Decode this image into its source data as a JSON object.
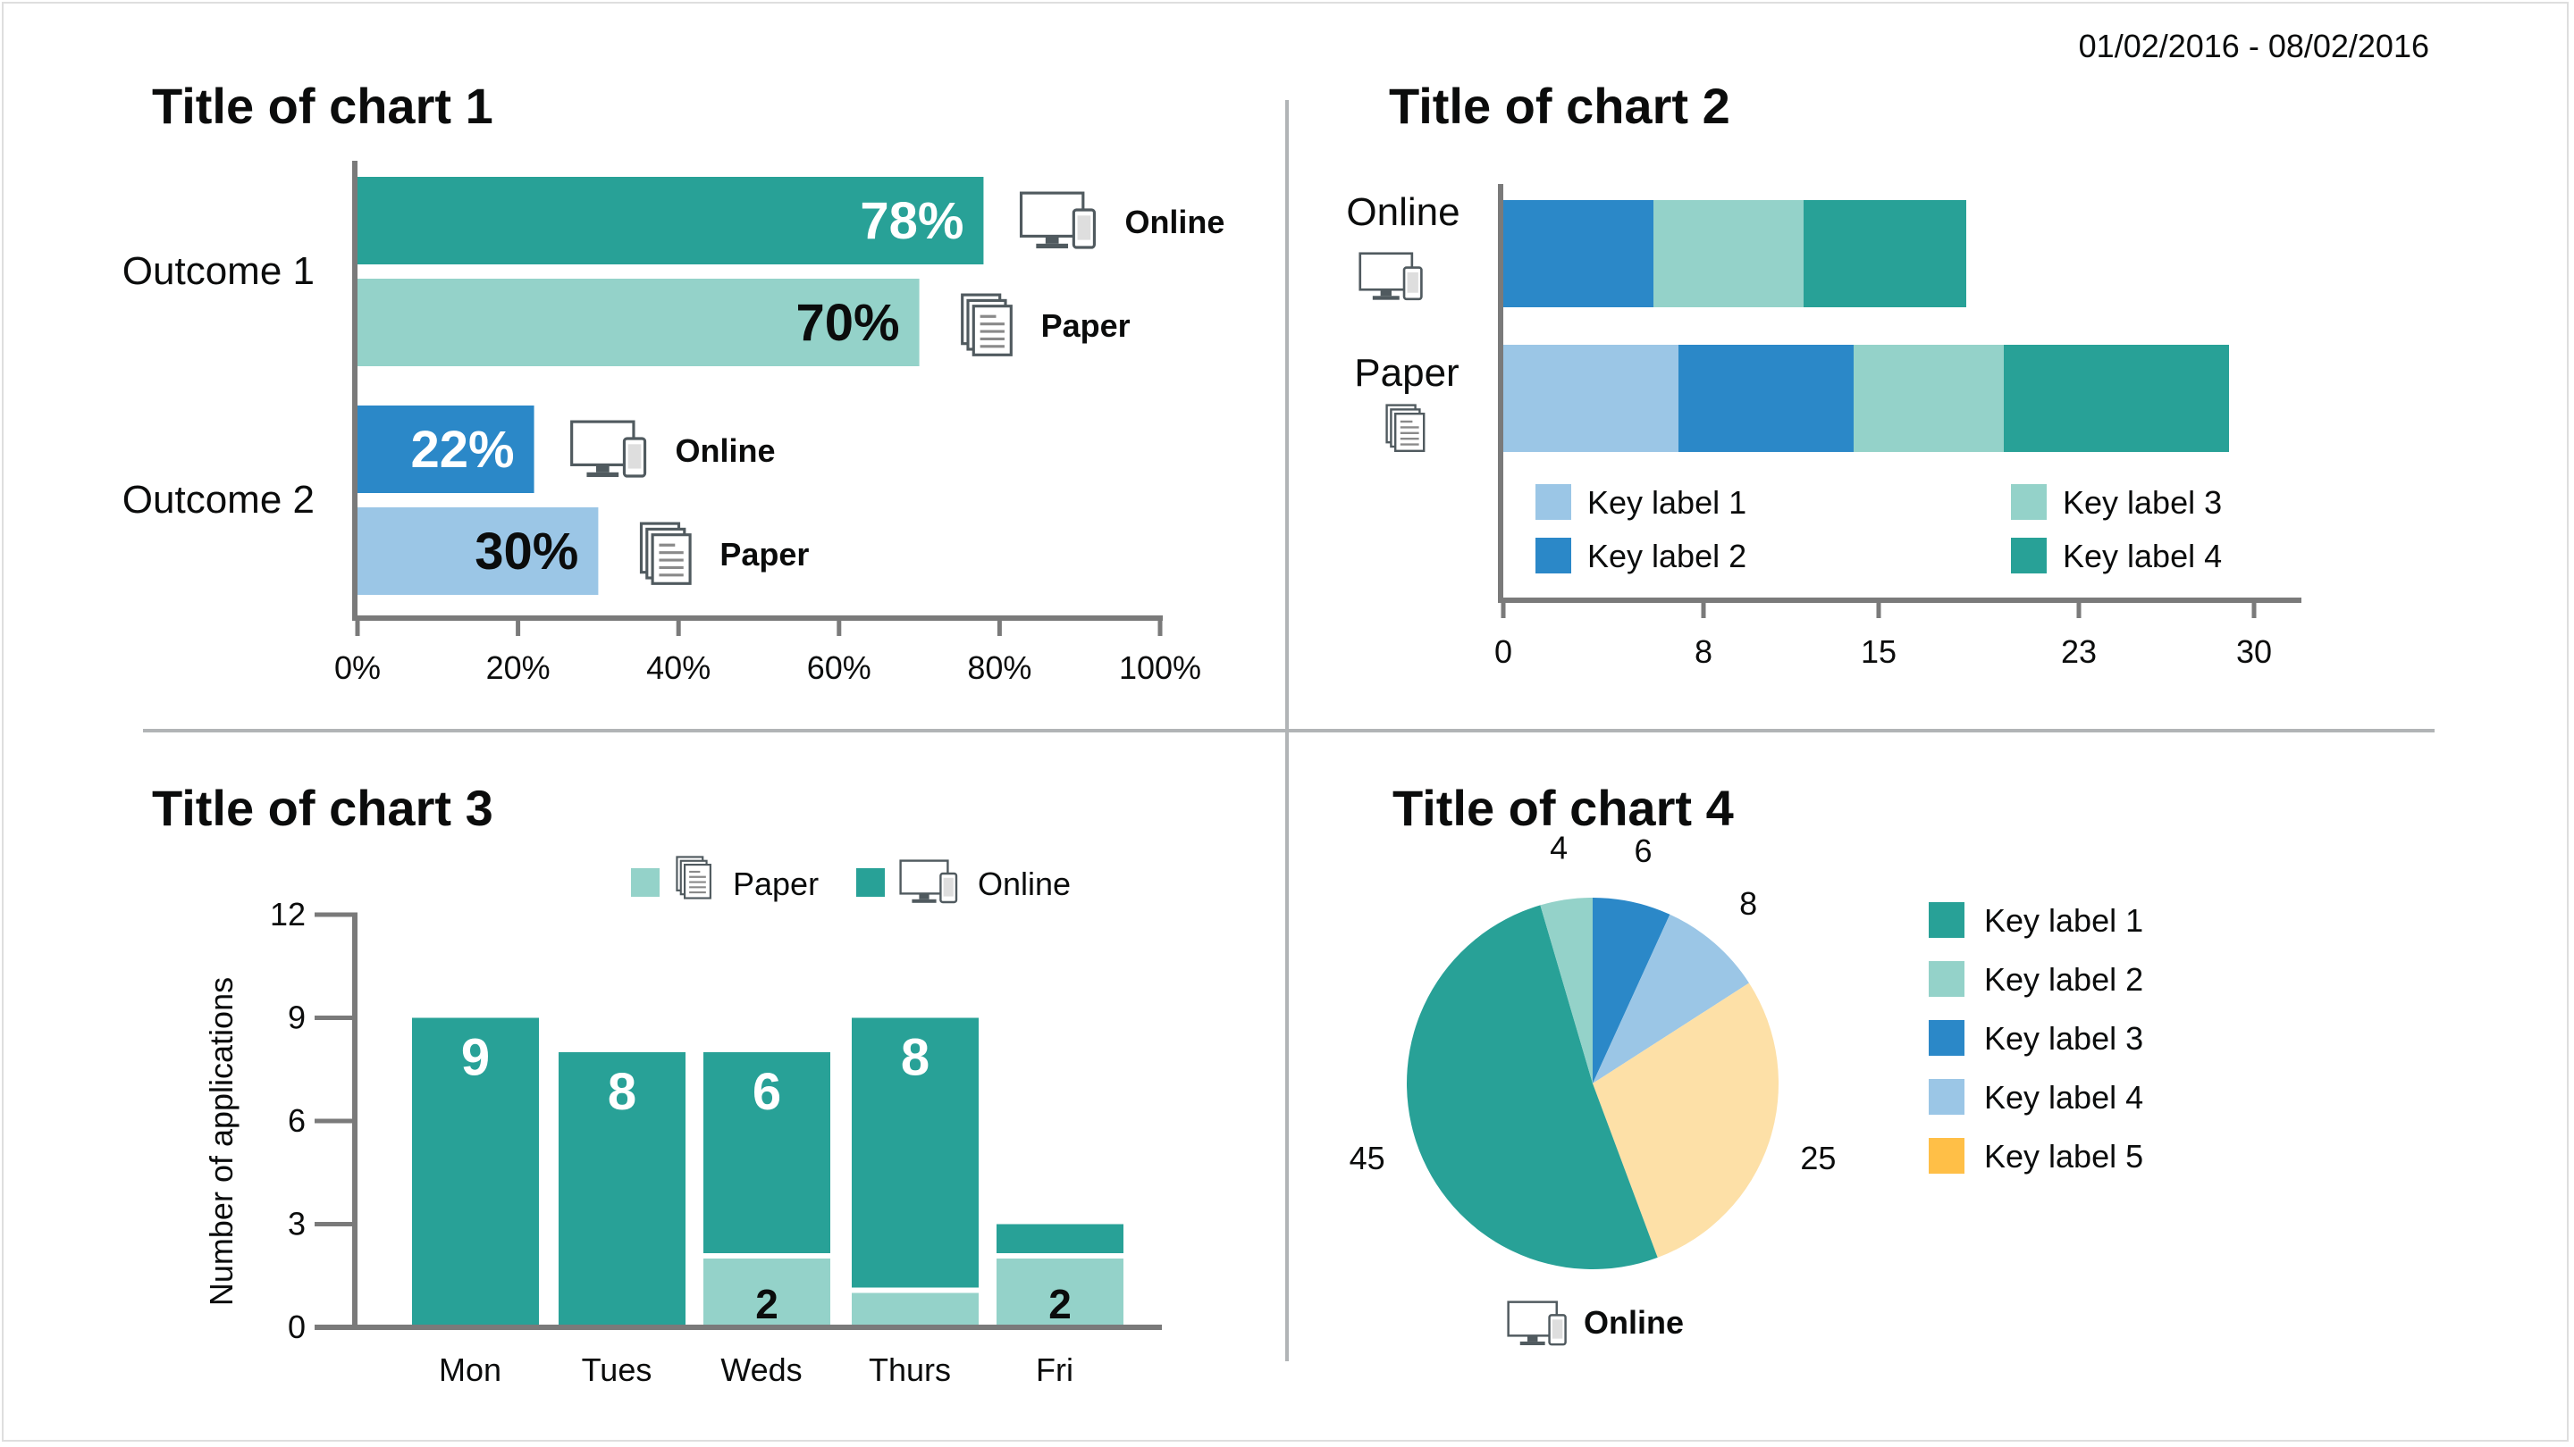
{
  "date_range": "01/02/2016 - 08/02/2016",
  "colors": {
    "teal": "#28a197",
    "light_teal": "#94d2c9",
    "blue": "#2b88c8",
    "light_blue": "#9bc6e6",
    "yellow": "#fde0a7",
    "orange": "#ffbf47",
    "axis": "#7a7a7a",
    "text": "#0b0c0c"
  },
  "icons": {
    "online": "desktop-and-phone-icon",
    "paper": "paper-documents-icon"
  },
  "chart_data": [
    {
      "type": "bar",
      "orientation": "horizontal",
      "title": "Title of chart 1",
      "categories": [
        "Outcome 1",
        "Outcome 2"
      ],
      "series": [
        {
          "name": "Online",
          "values": [
            78,
            22
          ],
          "value_labels": [
            "78%",
            "22%"
          ]
        },
        {
          "name": "Paper",
          "values": [
            70,
            30
          ],
          "value_labels": [
            "70%",
            "30%"
          ]
        }
      ],
      "xlim": [
        0,
        100
      ],
      "xticks": [
        "0%",
        "20%",
        "40%",
        "60%",
        "80%",
        "100%"
      ]
    },
    {
      "type": "bar",
      "orientation": "horizontal",
      "stacked": true,
      "title": "Title of chart 2",
      "categories": [
        "Online",
        "Paper"
      ],
      "series": [
        {
          "name": "Key label 1",
          "values": [
            0,
            7
          ]
        },
        {
          "name": "Key label 2",
          "values": [
            6,
            7
          ]
        },
        {
          "name": "Key label 3",
          "values": [
            6,
            6
          ]
        },
        {
          "name": "Key label 4",
          "values": [
            6.5,
            9
          ]
        }
      ],
      "xlim": [
        0,
        32
      ],
      "xticks": [
        0,
        8,
        15,
        23,
        30
      ],
      "legend": [
        "Key label 1",
        "Key label 2",
        "Key label 3",
        "Key label 4"
      ]
    },
    {
      "type": "bar",
      "stacked": true,
      "title": "Title of chart 3",
      "ylabel": "Number of applications",
      "categories": [
        "Mon",
        "Tues",
        "Weds",
        "Thurs",
        "Fri"
      ],
      "series": [
        {
          "name": "Paper",
          "values": [
            0,
            0,
            2,
            1,
            2
          ],
          "value_labels": [
            "",
            "",
            "2",
            "",
            "2"
          ]
        },
        {
          "name": "Online",
          "values": [
            9,
            8,
            6,
            8,
            1
          ],
          "value_labels": [
            "9",
            "8",
            "6",
            "8",
            ""
          ]
        }
      ],
      "ylim": [
        0,
        12
      ],
      "yticks": [
        0,
        3,
        6,
        9,
        12
      ],
      "legend": [
        "Paper",
        "Online"
      ]
    },
    {
      "type": "pie",
      "title": "Title of chart 4",
      "caption": "Online",
      "slices": [
        {
          "label": "Key label 1",
          "value": 45
        },
        {
          "label": "Key label 2",
          "value": 4
        },
        {
          "label": "Key label 3",
          "value": 6
        },
        {
          "label": "Key label 4",
          "value": 8
        },
        {
          "label": "Key label 5",
          "value": 25
        }
      ],
      "legend": [
        "Key label 1",
        "Key label 2",
        "Key label 3",
        "Key label 4",
        "Key label 5"
      ]
    }
  ]
}
